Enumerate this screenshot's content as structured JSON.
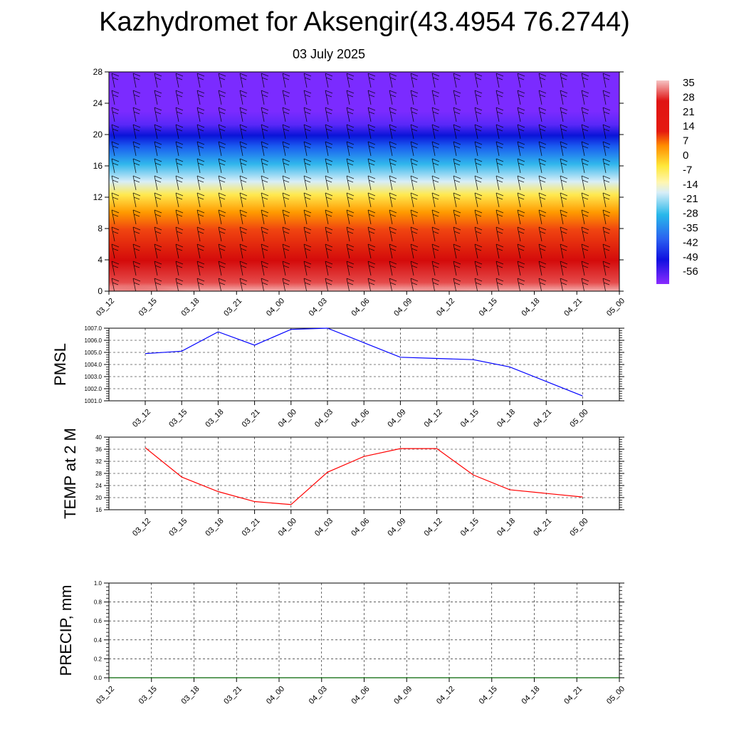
{
  "title": "Kazhydromet for Aksengir(43.4954 76.2744)",
  "subtitle": "03 July 2025",
  "time_labels": [
    "03_12",
    "03_15",
    "03_18",
    "03_21",
    "04_00",
    "04_03",
    "04_06",
    "04_09",
    "04_12",
    "04_15",
    "04_18",
    "04_21",
    "05_00"
  ],
  "colorbar_labels": [
    "35",
    "28",
    "21",
    "14",
    "7",
    "0",
    "-7",
    "-14",
    "-21",
    "-28",
    "-35",
    "-42",
    "-49",
    "-56"
  ],
  "chart_data": [
    {
      "type": "heatmap",
      "name": "",
      "y_ticks": [
        0,
        4,
        8,
        12,
        16,
        20,
        24,
        28
      ],
      "ylim": [
        0,
        28
      ],
      "x_categories": [
        "03_12",
        "03_15",
        "03_18",
        "03_21",
        "04_00",
        "04_03",
        "04_06",
        "04_09",
        "04_12",
        "04_15",
        "04_18",
        "04_21",
        "05_00"
      ],
      "colorbar_range": [
        -56,
        35
      ],
      "colors": [
        "#f3a6a6",
        "#e01414",
        "#ff8c00",
        "#fff06b",
        "#28b8ea",
        "#0a1ee0",
        "#7b2bff"
      ]
    },
    {
      "type": "line",
      "ylabel": "PMSL",
      "ylim": [
        1001.0,
        1007.0
      ],
      "y_ticks": [
        "1001.0",
        "1002.0",
        "1003.0",
        "1004.0",
        "1005.0",
        "1006.0",
        "1007.0"
      ],
      "categories": [
        "03_12",
        "03_15",
        "03_18",
        "03_21",
        "04_00",
        "04_03",
        "04_06",
        "04_09",
        "04_12",
        "04_15",
        "04_18",
        "04_21",
        "05_00"
      ],
      "values": [
        1004.9,
        1005.1,
        1006.7,
        1005.6,
        1006.9,
        1007.0,
        1005.8,
        1004.6,
        1004.5,
        1004.4,
        1003.8,
        1002.6,
        1001.4
      ],
      "color": "#0000ff"
    },
    {
      "type": "line",
      "ylabel": "TEMP at 2 M",
      "ylim": [
        16,
        40
      ],
      "y_ticks": [
        "16",
        "20",
        "24",
        "28",
        "32",
        "36",
        "40"
      ],
      "categories": [
        "03_12",
        "03_15",
        "03_18",
        "03_21",
        "04_00",
        "04_03",
        "04_06",
        "04_09",
        "04_12",
        "04_15",
        "04_18",
        "04_21",
        "05_00"
      ],
      "values": [
        36.5,
        26.8,
        22.0,
        18.7,
        17.7,
        28.4,
        33.6,
        36.2,
        36.2,
        27.5,
        22.6,
        21.4,
        20.2
      ],
      "color": "#ff0000"
    },
    {
      "type": "line",
      "ylabel": "PRECIP, mm",
      "ylim": [
        0.0,
        1.0
      ],
      "y_ticks": [
        "0.0",
        "0.2",
        "0.4",
        "0.6",
        "0.8",
        "1.0"
      ],
      "categories": [
        "03_12",
        "03_15",
        "03_18",
        "03_21",
        "04_00",
        "04_03",
        "04_06",
        "04_09",
        "04_12",
        "04_15",
        "04_18",
        "04_21",
        "05_00"
      ],
      "values": [
        0,
        0,
        0,
        0,
        0,
        0,
        0,
        0,
        0,
        0,
        0,
        0,
        0
      ],
      "color": "#006400"
    }
  ]
}
